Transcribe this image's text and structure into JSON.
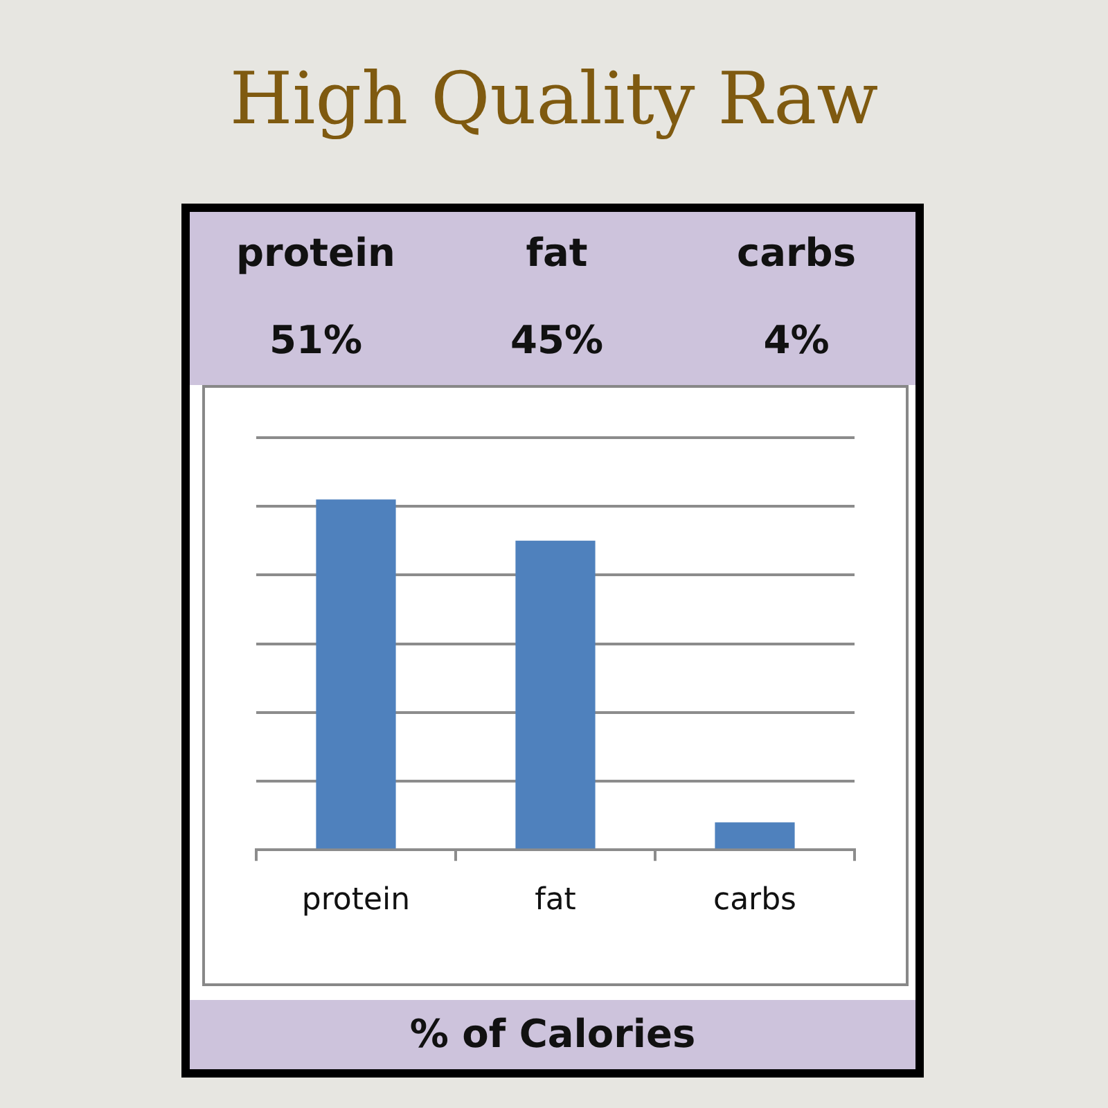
{
  "chart_data": {
    "type": "bar",
    "title": "High Quality Raw",
    "xlabel": "% of Calories",
    "categories": [
      "protein",
      "fat",
      "carbs"
    ],
    "values": [
      51,
      45,
      4
    ],
    "color": "#4f81bd",
    "value_labels": [
      "51%",
      "45%",
      "4%"
    ],
    "ylim": [
      0,
      60
    ],
    "yticks": [
      {
        "value": 0,
        "label": null
      },
      {
        "value": 10,
        "label": null
      },
      {
        "value": 20,
        "label": null
      },
      {
        "value": 30,
        "label": null
      },
      {
        "value": 40,
        "label": null
      },
      {
        "value": 50,
        "label": null
      },
      {
        "value": 60,
        "label": null
      }
    ],
    "grid": "y",
    "tick_labels": "x"
  }
}
